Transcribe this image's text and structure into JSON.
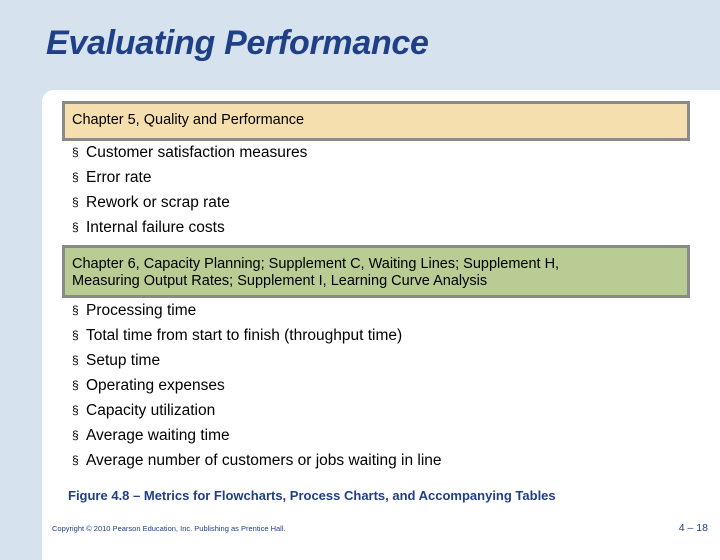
{
  "slide": {
    "title": "Evaluating Performance",
    "section1": {
      "heading": "Chapter 5, Quality and Performance",
      "items": [
        "Customer satisfaction measures",
        "Error rate",
        "Rework or scrap rate",
        "Internal failure costs"
      ]
    },
    "section2": {
      "heading_line1": "Chapter 6, Capacity Planning; Supplement C, Waiting Lines; Supplement H,",
      "heading_line2": "Measuring Output Rates; Supplement I, Learning Curve Analysis",
      "items": [
        "Processing time",
        "Total time from start to finish (throughput time)",
        "Setup time",
        "Operating expenses",
        "Capacity utilization",
        "Average waiting time",
        "Average number of customers or jobs waiting in line"
      ]
    },
    "bullet_glyph": "§",
    "caption": "Figure 4.8 –  Metrics for Flowcharts, Process Charts, and Accompanying Tables",
    "footer": {
      "copyright": "Copyright © 2010 Pearson Education, Inc. Publishing as Prentice Hall.",
      "page": "4 – 18"
    }
  },
  "colors": {
    "title": "#1f3f86",
    "section1_fill": "#f6dfae",
    "section2_fill": "#b8cc93",
    "box_border": "#8a8a8a",
    "background": "#d6e3ee"
  }
}
